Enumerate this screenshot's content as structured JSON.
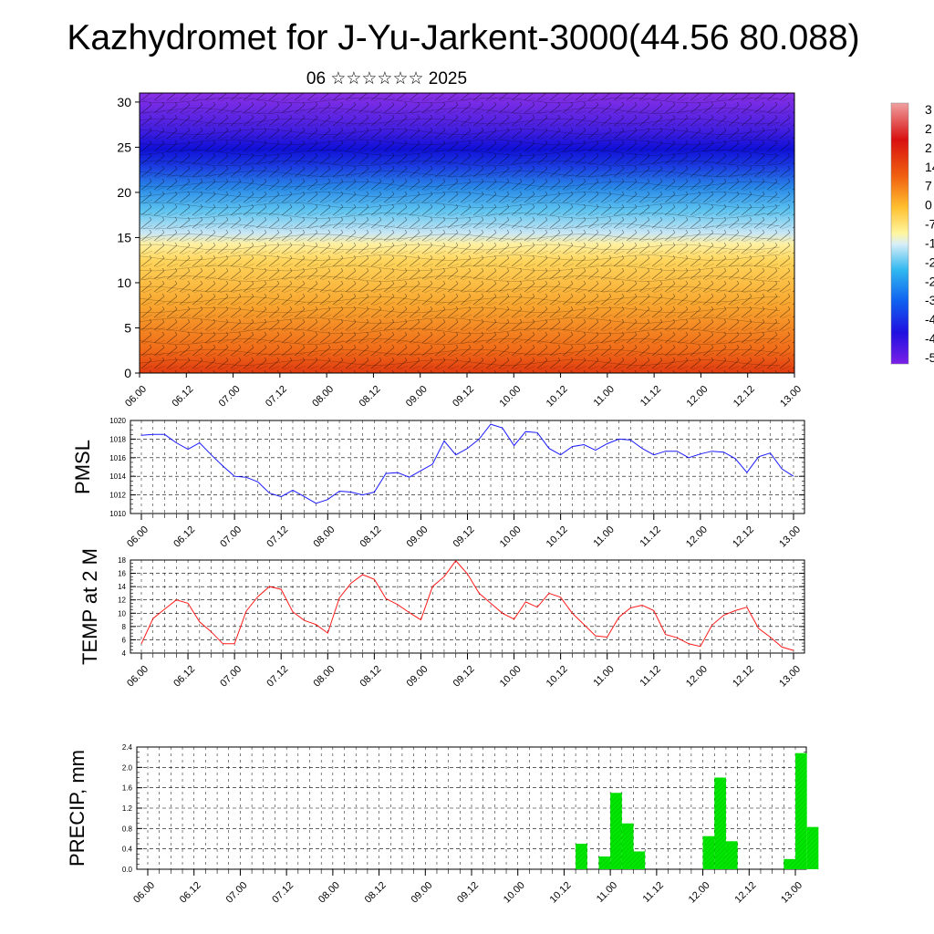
{
  "title": "Kazhydromet for J-Yu-Jarkent-3000(44.56 80.088)",
  "subtitle": "06 ☆☆☆☆☆☆ 2025",
  "chart_data": [
    {
      "type": "heatmap",
      "name": "cross-section",
      "xlabel": "",
      "ylabel": "",
      "ylim": [
        0,
        31
      ],
      "yticks": [
        "0",
        "5",
        "10",
        "15",
        "20",
        "25",
        "30"
      ],
      "xticks": [
        "06.00",
        "06.12",
        "07.00",
        "07.12",
        "08.00",
        "08.12",
        "09.00",
        "09.12",
        "10.00",
        "10.12",
        "11.00",
        "11.12",
        "12.00",
        "12.12",
        "13.00"
      ],
      "colorbar_labels": [
        "3",
        "2",
        "2",
        "14",
        "7",
        "0",
        "-7",
        "-1",
        "-2",
        "-2",
        "-3",
        "-4",
        "-4",
        "-5"
      ],
      "colors": {
        "warm": "#e8401a",
        "mid": "#ffd54a",
        "cool": "#3cb4f0",
        "cold": "#2a14d8",
        "top": "#7a2ae0"
      }
    },
    {
      "type": "line",
      "name": "pmsl",
      "ylabel": "PMSL",
      "ylim": [
        1010,
        1020
      ],
      "yticks": [
        "1010",
        "1012",
        "1014",
        "1016",
        "1018",
        "1020"
      ],
      "xticks": [
        "06.00",
        "06.12",
        "07.00",
        "07.12",
        "08.00",
        "08.12",
        "09.00",
        "09.12",
        "10.00",
        "10.12",
        "11.00",
        "11.12",
        "12.00",
        "12.12",
        "13.00"
      ],
      "values": [
        1018.4,
        1018.5,
        1018.5,
        1017.6,
        1016.9,
        1017.6,
        1016.3,
        1015.1,
        1014.0,
        1013.9,
        1013.4,
        1012.2,
        1011.8,
        1012.5,
        1011.8,
        1011.1,
        1011.5,
        1012.4,
        1012.3,
        1012.0,
        1012.3,
        1014.3,
        1014.4,
        1013.9,
        1014.6,
        1015.3,
        1017.8,
        1016.3,
        1017.0,
        1018.0,
        1019.6,
        1019.2,
        1017.3,
        1018.8,
        1018.7,
        1017.0,
        1016.3,
        1017.2,
        1017.4,
        1016.8,
        1017.5,
        1018.0,
        1017.9,
        1017.0,
        1016.3,
        1016.7,
        1016.7,
        1016.0,
        1016.4,
        1016.7,
        1016.6,
        1015.9,
        1014.4,
        1016.1,
        1016.5,
        1014.8,
        1014.0
      ],
      "color": "#1a1aff"
    },
    {
      "type": "line",
      "name": "temp2m",
      "ylabel": "TEMP at 2 M",
      "ylim": [
        4,
        18
      ],
      "yticks": [
        "4",
        "6",
        "8",
        "10",
        "12",
        "14",
        "16",
        "18"
      ],
      "xticks": [
        "06.00",
        "06.12",
        "07.00",
        "07.12",
        "08.00",
        "08.12",
        "09.00",
        "09.12",
        "10.00",
        "10.12",
        "11.00",
        "11.12",
        "12.00",
        "12.12",
        "13.00"
      ],
      "values": [
        5.4,
        9.2,
        10.6,
        12.0,
        11.5,
        8.7,
        7.2,
        5.4,
        5.4,
        10.3,
        12.5,
        14.0,
        13.6,
        10.2,
        8.9,
        8.3,
        7.0,
        12.3,
        14.5,
        15.8,
        15.1,
        12.2,
        11.3,
        10.1,
        9.0,
        14.0,
        15.5,
        17.9,
        15.9,
        13.0,
        11.5,
        10.0,
        9.1,
        11.7,
        10.9,
        13.0,
        12.4,
        10.0,
        8.3,
        6.6,
        6.4,
        9.4,
        10.8,
        11.2,
        10.4,
        6.8,
        6.3,
        5.4,
        5.0,
        8.2,
        9.7,
        10.4,
        10.9,
        7.7,
        6.4,
        4.9,
        4.4
      ],
      "color": "#ff1a1a"
    },
    {
      "type": "bar",
      "name": "precip",
      "ylabel": "PRECIP, mm",
      "ylim": [
        0,
        2.4
      ],
      "yticks": [
        "0.0",
        "0.4",
        "0.8",
        "1.2",
        "1.6",
        "2.0",
        "2.4"
      ],
      "xticks": [
        "06.00",
        "06.12",
        "07.00",
        "07.12",
        "08.00",
        "08.12",
        "09.00",
        "09.12",
        "10.00",
        "10.12",
        "11.00",
        "11.12",
        "12.00",
        "12.12",
        "13.00"
      ],
      "bars": [
        {
          "x": 37,
          "value": 0.5
        },
        {
          "x": 39,
          "value": 0.25
        },
        {
          "x": 40,
          "value": 1.5
        },
        {
          "x": 41,
          "value": 0.9
        },
        {
          "x": 42,
          "value": 0.35
        },
        {
          "x": 48,
          "value": 0.65
        },
        {
          "x": 49,
          "value": 1.8
        },
        {
          "x": 50,
          "value": 0.55
        },
        {
          "x": 55,
          "value": 0.2
        },
        {
          "x": 56,
          "value": 2.28
        },
        {
          "x": 57,
          "value": 0.83
        }
      ],
      "color": "#00e600"
    }
  ]
}
